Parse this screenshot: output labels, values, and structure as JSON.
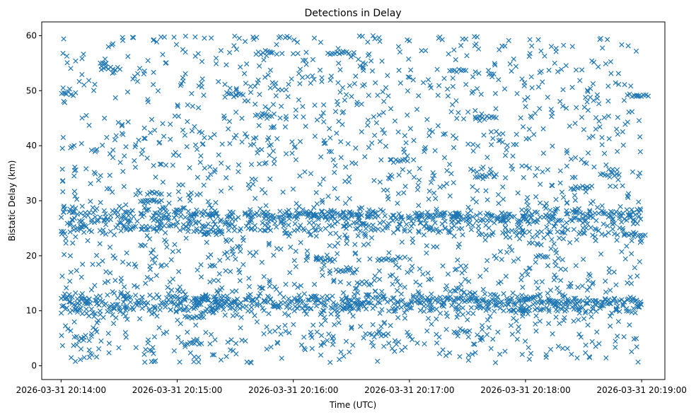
{
  "chart_data": {
    "type": "scatter",
    "title": "Detections in Delay",
    "xlabel": "Time (UTC)",
    "ylabel": "Bistatic Delay (km)",
    "x_start": "2026-03-31 20:14:00",
    "x_end": "2026-03-31 20:19:00",
    "xlim": [
      "2026-03-31 20:13:50",
      "2026-03-31 20:19:12"
    ],
    "ylim": [
      -2.5,
      62.5
    ],
    "xticks": [
      "2026-03-31 20:14:00",
      "2026-03-31 20:15:00",
      "2026-03-31 20:16:00",
      "2026-03-31 20:17:00",
      "2026-03-31 20:18:00",
      "2026-03-31 20:19:00"
    ],
    "yticks": [
      0,
      10,
      20,
      30,
      40,
      50,
      60
    ],
    "marker": "x",
    "color": "#1f77b4",
    "grid": false,
    "tracks": [
      {
        "y_start": 11.5,
        "y_end": 11.5,
        "spread": 0.8,
        "density": 1.0
      },
      {
        "y_start": 12.5,
        "y_end": 11.8,
        "spread": 0.6,
        "density": 0.6
      },
      {
        "y_start": 10.5,
        "y_end": 10.2,
        "spread": 0.6,
        "density": 0.5
      },
      {
        "y_start": 28.5,
        "y_end": 26.0,
        "spread": 0.5,
        "density": 0.5
      },
      {
        "y_start": 26.5,
        "y_end": 27.8,
        "spread": 0.5,
        "density": 0.5
      },
      {
        "y_start": 25.5,
        "y_end": 24.0,
        "spread": 0.6,
        "density": 0.5
      },
      {
        "y_start": 27.5,
        "y_end": 27.0,
        "spread": 0.5,
        "density": 0.4
      },
      {
        "y_start": 24.5,
        "y_end": 26.5,
        "spread": 0.6,
        "density": 0.4
      }
    ],
    "clutter_range": [
      0.5,
      60
    ],
    "point_count_estimate": 4200
  }
}
